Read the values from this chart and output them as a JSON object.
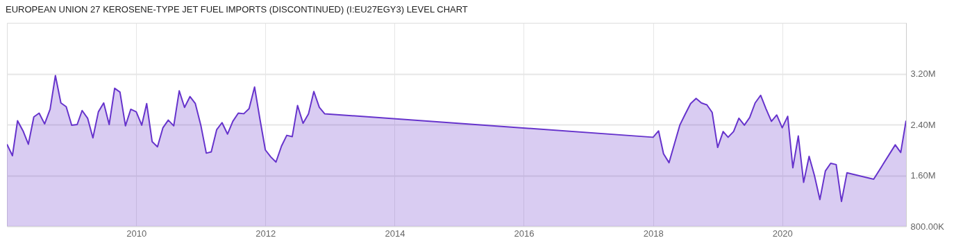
{
  "chart_data": {
    "type": "area",
    "title": "EUROPEAN UNION 27 KEROSENE-TYPE JET FUEL IMPORTS (DISCONTINUED) (I:EU27EGY3) LEVEL CHART",
    "x": [
      "2008-01",
      "2008-02",
      "2008-03",
      "2008-04",
      "2008-05",
      "2008-06",
      "2008-07",
      "2008-08",
      "2008-09",
      "2008-10",
      "2008-11",
      "2008-12",
      "2009-01",
      "2009-02",
      "2009-03",
      "2009-04",
      "2009-05",
      "2009-06",
      "2009-07",
      "2009-08",
      "2009-09",
      "2009-10",
      "2009-11",
      "2009-12",
      "2010-01",
      "2010-02",
      "2010-03",
      "2010-04",
      "2010-05",
      "2010-06",
      "2010-07",
      "2010-08",
      "2010-09",
      "2010-10",
      "2010-11",
      "2010-12",
      "2011-01",
      "2011-02",
      "2011-03",
      "2011-04",
      "2011-05",
      "2011-06",
      "2011-07",
      "2011-08",
      "2011-09",
      "2011-10",
      "2011-11",
      "2011-12",
      "2012-01",
      "2012-02",
      "2012-03",
      "2012-04",
      "2012-05",
      "2012-06",
      "2012-07",
      "2012-08",
      "2012-09",
      "2012-10",
      "2012-11",
      "2012-12",
      "2018-01",
      "2018-02",
      "2018-03",
      "2018-04",
      "2018-05",
      "2018-06",
      "2018-07",
      "2018-08",
      "2018-09",
      "2018-10",
      "2018-11",
      "2018-12",
      "2019-01",
      "2019-02",
      "2019-03",
      "2019-04",
      "2019-05",
      "2019-06",
      "2019-07",
      "2019-08",
      "2019-09",
      "2019-10",
      "2019-11",
      "2019-12",
      "2020-01",
      "2020-02",
      "2020-03",
      "2020-04",
      "2020-05",
      "2020-06",
      "2020-07",
      "2020-08",
      "2020-09",
      "2020-10",
      "2020-11",
      "2020-12",
      "2021-01",
      "2021-06",
      "2021-10",
      "2021-11",
      "2021-12"
    ],
    "series": [
      {
        "color": "#6633cc",
        "values": [
          2090000,
          1910000,
          2460000,
          2300000,
          2090000,
          2520000,
          2580000,
          2410000,
          2640000,
          3170000,
          2740000,
          2680000,
          2390000,
          2400000,
          2620000,
          2500000,
          2190000,
          2600000,
          2740000,
          2400000,
          2970000,
          2910000,
          2380000,
          2640000,
          2600000,
          2390000,
          2730000,
          2130000,
          2050000,
          2350000,
          2470000,
          2380000,
          2930000,
          2670000,
          2840000,
          2730000,
          2390000,
          1950000,
          1970000,
          2320000,
          2430000,
          2250000,
          2450000,
          2580000,
          2570000,
          2650000,
          2990000,
          2490000,
          2000000,
          1890000,
          1810000,
          2060000,
          2230000,
          2210000,
          2700000,
          2420000,
          2570000,
          2920000,
          2670000,
          2570000,
          2200000,
          2300000,
          1940000,
          1800000,
          2090000,
          2390000,
          2560000,
          2730000,
          2810000,
          2740000,
          2710000,
          2590000,
          2040000,
          2290000,
          2200000,
          2290000,
          2500000,
          2390000,
          2510000,
          2740000,
          2860000,
          2650000,
          2450000,
          2550000,
          2350000,
          2530000,
          1720000,
          2220000,
          1490000,
          1900000,
          1600000,
          1220000,
          1670000,
          1790000,
          1770000,
          1190000,
          1640000,
          1540000,
          2080000,
          1960000,
          2460000
        ]
      }
    ],
    "xlim": [
      "2008-01",
      "2021-12"
    ],
    "xticks": [
      {
        "value": "2010",
        "label": "2010"
      },
      {
        "value": "2012",
        "label": "2012"
      },
      {
        "value": "2014",
        "label": "2014"
      },
      {
        "value": "2016",
        "label": "2016"
      },
      {
        "value": "2018",
        "label": "2018"
      },
      {
        "value": "2020",
        "label": "2020"
      }
    ],
    "ylim": [
      800000,
      4000000
    ],
    "yticks": [
      {
        "value": 800000,
        "label": "800.00K"
      },
      {
        "value": 1600000,
        "label": "1.60M"
      },
      {
        "value": 2400000,
        "label": "2.40M"
      },
      {
        "value": 3200000,
        "label": "3.20M"
      }
    ],
    "grid": true
  }
}
